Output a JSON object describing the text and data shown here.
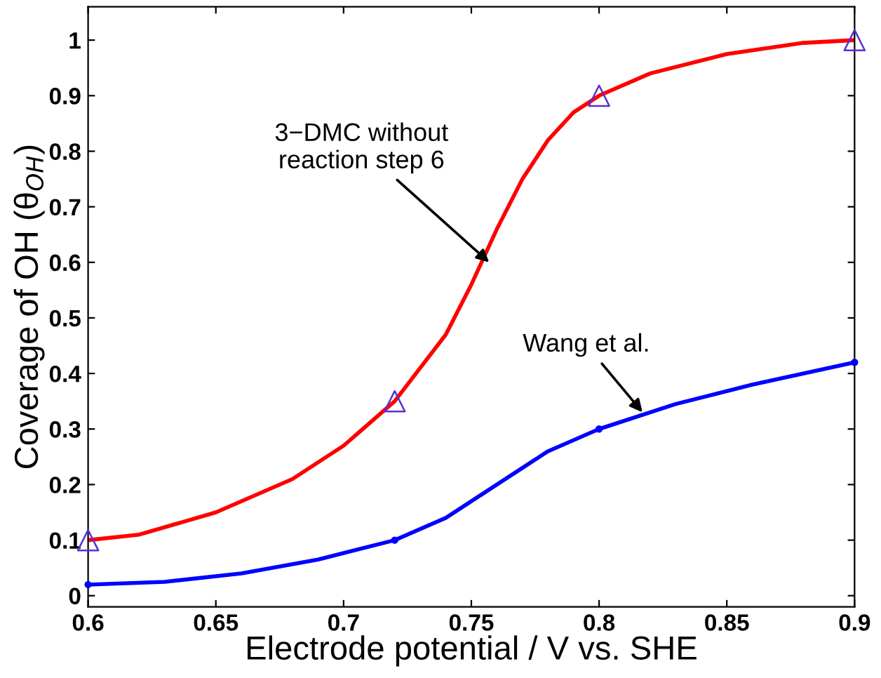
{
  "chart_data": {
    "type": "line",
    "xlabel": "Electrode potential / V vs. SHE",
    "ylabel": "Coverage of OH (θ$_{OH}$)",
    "xlim": [
      0.6,
      0.9
    ],
    "ylim": [
      -0.02,
      1.06
    ],
    "xticks": [
      0.6,
      0.65,
      0.7,
      0.75,
      0.8,
      0.85,
      0.9
    ],
    "yticks": [
      0,
      0.1,
      0.2,
      0.3,
      0.4,
      0.5,
      0.6,
      0.7,
      0.8,
      0.9,
      1
    ],
    "grid": false,
    "legend": false,
    "series": [
      {
        "color": "#ff0000",
        "marker": "none",
        "x": [
          0.6,
          0.62,
          0.65,
          0.68,
          0.7,
          0.72,
          0.74,
          0.75,
          0.76,
          0.77,
          0.78,
          0.79,
          0.8,
          0.82,
          0.85,
          0.88,
          0.9
        ],
        "values": [
          0.1,
          0.11,
          0.15,
          0.21,
          0.27,
          0.35,
          0.47,
          0.56,
          0.66,
          0.75,
          0.82,
          0.87,
          0.9,
          0.94,
          0.975,
          0.995,
          1.0
        ]
      },
      {
        "type": "scatter",
        "color": "#5a2fd0",
        "marker": "triangle",
        "x": [
          0.6,
          0.72,
          0.8,
          0.9
        ],
        "values": [
          0.1,
          0.35,
          0.9,
          1.0
        ]
      },
      {
        "color": "#0000ff",
        "marker": "none",
        "x": [
          0.6,
          0.63,
          0.66,
          0.69,
          0.72,
          0.74,
          0.76,
          0.78,
          0.8,
          0.83,
          0.86,
          0.9
        ],
        "values": [
          0.02,
          0.025,
          0.04,
          0.065,
          0.1,
          0.14,
          0.2,
          0.26,
          0.3,
          0.345,
          0.38,
          0.42
        ]
      },
      {
        "type": "scatter",
        "color": "#0000ff",
        "marker": "circle",
        "x": [
          0.6,
          0.72,
          0.8,
          0.9
        ],
        "values": [
          0.02,
          0.1,
          0.3,
          0.42
        ]
      }
    ],
    "annotations": [
      {
        "text": "3−DMC without\nreaction step 6",
        "x": 0.757,
        "y": 0.6
      },
      {
        "text": "Wang et al.",
        "x": 0.817,
        "y": 0.33
      }
    ]
  }
}
